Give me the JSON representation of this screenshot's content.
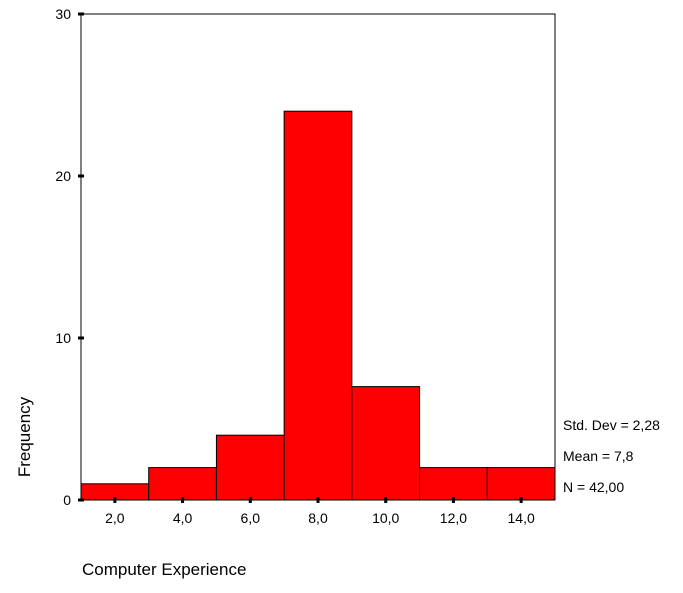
{
  "chart_data": {
    "type": "bar",
    "categories": [
      "2,0",
      "4,0",
      "6,0",
      "8,0",
      "10,0",
      "12,0",
      "14,0"
    ],
    "bins": [
      {
        "from": 1,
        "to": 3,
        "value": 1
      },
      {
        "from": 3,
        "to": 5,
        "value": 2
      },
      {
        "from": 5,
        "to": 7,
        "value": 4
      },
      {
        "from": 7,
        "to": 9,
        "value": 24
      },
      {
        "from": 9,
        "to": 11,
        "value": 7
      },
      {
        "from": 11,
        "to": 13,
        "value": 2
      },
      {
        "from": 13,
        "to": 15,
        "value": 2
      }
    ],
    "x_ticks": [
      {
        "value": 2,
        "label": "2,0"
      },
      {
        "value": 4,
        "label": "4,0"
      },
      {
        "value": 6,
        "label": "6,0"
      },
      {
        "value": 8,
        "label": "8,0"
      },
      {
        "value": 10,
        "label": "10,0"
      },
      {
        "value": 12,
        "label": "12,0"
      },
      {
        "value": 14,
        "label": "14,0"
      }
    ],
    "y_ticks": [
      {
        "value": 0,
        "label": "0"
      },
      {
        "value": 10,
        "label": "10"
      },
      {
        "value": 20,
        "label": "20"
      },
      {
        "value": 30,
        "label": "30"
      }
    ],
    "xlim": [
      1,
      15
    ],
    "ylim": [
      0,
      30
    ],
    "xlabel": "Computer Experience",
    "ylabel": "Frequency",
    "title": "",
    "grid": false,
    "bar_color": "#ff0000",
    "stats": {
      "std_dev": "Std. Dev = 2,28",
      "mean": "Mean = 7,8",
      "n": "N = 42,00"
    }
  }
}
